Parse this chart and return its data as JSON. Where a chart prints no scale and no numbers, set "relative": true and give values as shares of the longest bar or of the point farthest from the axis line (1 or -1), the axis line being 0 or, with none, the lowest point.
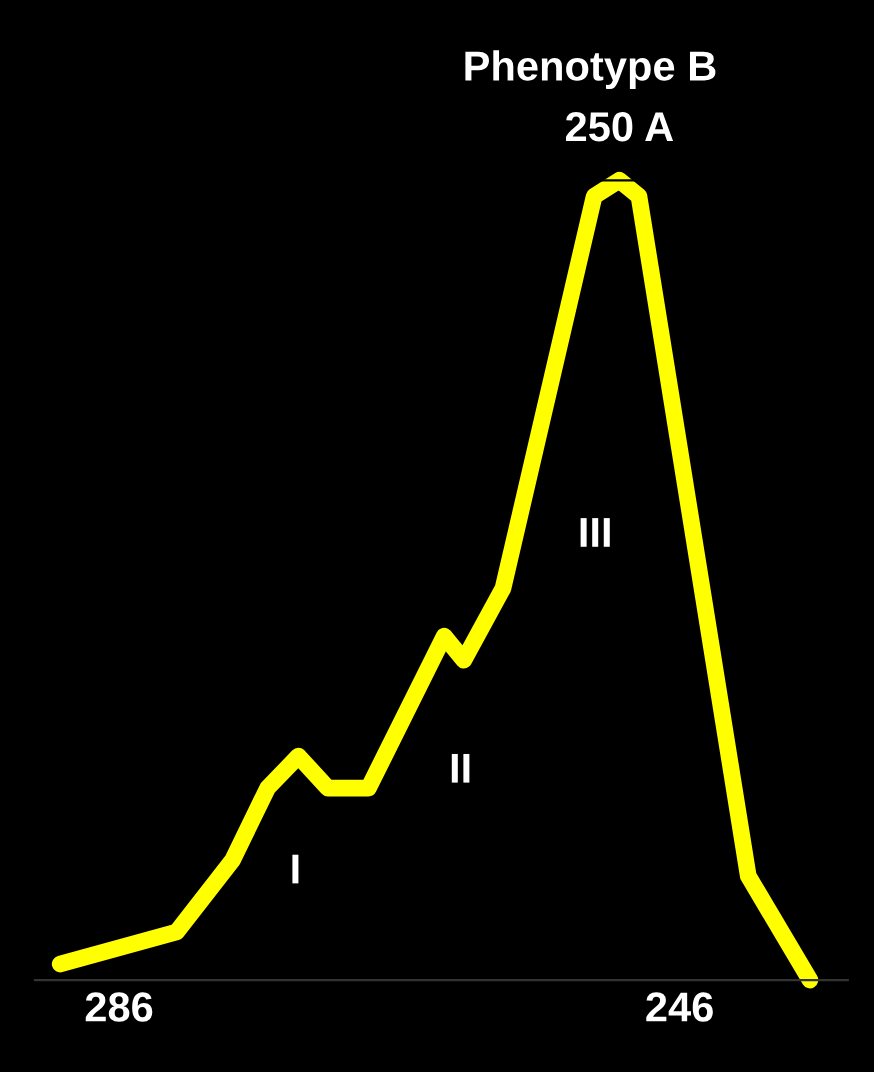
{
  "chart_data": {
    "type": "line",
    "title": "Phenotype B",
    "relative": true,
    "x": [
      290.2,
      281.9,
      277.9,
      275.4,
      273.2,
      271.1,
      268.2,
      262.8,
      261.4,
      258.6,
      252.1,
      250.3,
      248.9,
      241.1,
      236.7
    ],
    "series": [
      {
        "color": "#ffff00",
        "values": [
          0.02,
          0.06,
          0.15,
          0.24,
          0.28,
          0.24,
          0.24,
          0.43,
          0.4,
          0.49,
          0.98,
          1,
          0.98,
          0.13,
          0
        ]
      }
    ],
    "xlim": [
      292,
      234
    ],
    "xticks": [
      286,
      246
    ],
    "tick_labels": "x",
    "grid": false,
    "legend": false,
    "marker": "none",
    "line_style": "solid",
    "annotations": [
      {
        "text": "250 A",
        "x": 250.3,
        "y": 1
      },
      "I",
      "II",
      "III"
    ]
  }
}
